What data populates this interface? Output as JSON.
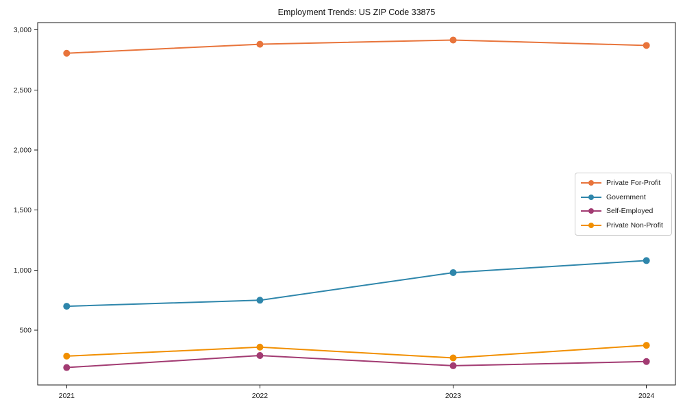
{
  "chart_data": {
    "type": "line",
    "title": "Employment Trends: US ZIP Code 33875",
    "xlabel": "",
    "ylabel": "",
    "x": [
      2021,
      2022,
      2023,
      2024
    ],
    "x_tick_labels": [
      "2021",
      "2022",
      "2023",
      "2024"
    ],
    "series": [
      {
        "name": "Private For-Profit",
        "color": "#E8743B",
        "values": [
          2805,
          2880,
          2915,
          2870
        ]
      },
      {
        "name": "Government",
        "color": "#2E86AB",
        "values": [
          700,
          750,
          980,
          1080
        ]
      },
      {
        "name": "Self-Employed",
        "color": "#A23B72",
        "values": [
          190,
          290,
          205,
          240
        ]
      },
      {
        "name": "Private Non-Profit",
        "color": "#F18F01",
        "values": [
          285,
          360,
          270,
          375
        ]
      }
    ],
    "yticks": [
      500,
      1000,
      1500,
      2000,
      2500,
      3000
    ],
    "ytick_labels": [
      "500",
      "1,000",
      "1,500",
      "2,000",
      "2,500",
      "3,000"
    ],
    "xlim": [
      2020.85,
      2024.15
    ],
    "ylim": [
      45,
      3060
    ],
    "grid": false,
    "legend_position": "center right",
    "marker": "circle",
    "line_width": 2,
    "marker_radius": 5,
    "frame_color": "#1a1a1a",
    "background": "#ffffff"
  }
}
